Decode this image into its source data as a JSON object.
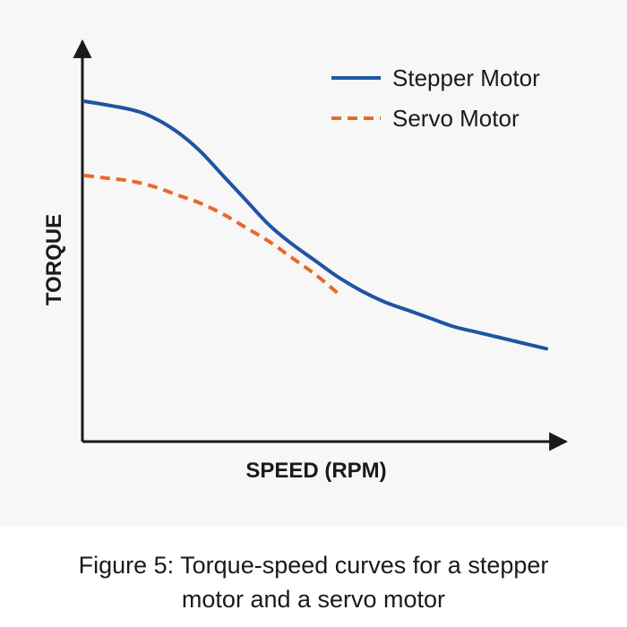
{
  "chart_data": {
    "type": "line",
    "xlabel": "SPEED (RPM)",
    "ylabel": "TORQUE",
    "xlim": [
      0,
      10
    ],
    "ylim": [
      0,
      10
    ],
    "grid": false,
    "axis_ticks": false,
    "legend_position": "top-right",
    "series": [
      {
        "name": "Stepper Motor",
        "color": "#1f54a3",
        "style": "solid",
        "x": [
          0,
          1,
          1.5,
          2,
          2.5,
          3,
          3.5,
          4,
          4.5,
          5,
          5.5,
          6,
          6.5,
          7,
          7.5,
          8,
          8.5,
          9,
          10
        ],
        "y": [
          10,
          9.7,
          9.4,
          8.9,
          8.2,
          7.3,
          6.4,
          5.5,
          4.8,
          4.2,
          3.6,
          3.1,
          2.7,
          2.4,
          2.1,
          1.8,
          1.6,
          1.4,
          1.0
        ]
      },
      {
        "name": "Servo Motor",
        "color": "#e8692a",
        "style": "dashed",
        "x": [
          0,
          0.5,
          1,
          1.5,
          2,
          2.5,
          3,
          3.5,
          4,
          4.5,
          5,
          5.5
        ],
        "y": [
          7.3,
          7.2,
          7.1,
          6.9,
          6.6,
          6.3,
          5.9,
          5.4,
          4.9,
          4.3,
          3.7,
          3.0
        ]
      }
    ]
  },
  "caption": {
    "line1": "Figure 5: Torque-speed curves for a stepper",
    "line2": "motor and a servo motor"
  }
}
